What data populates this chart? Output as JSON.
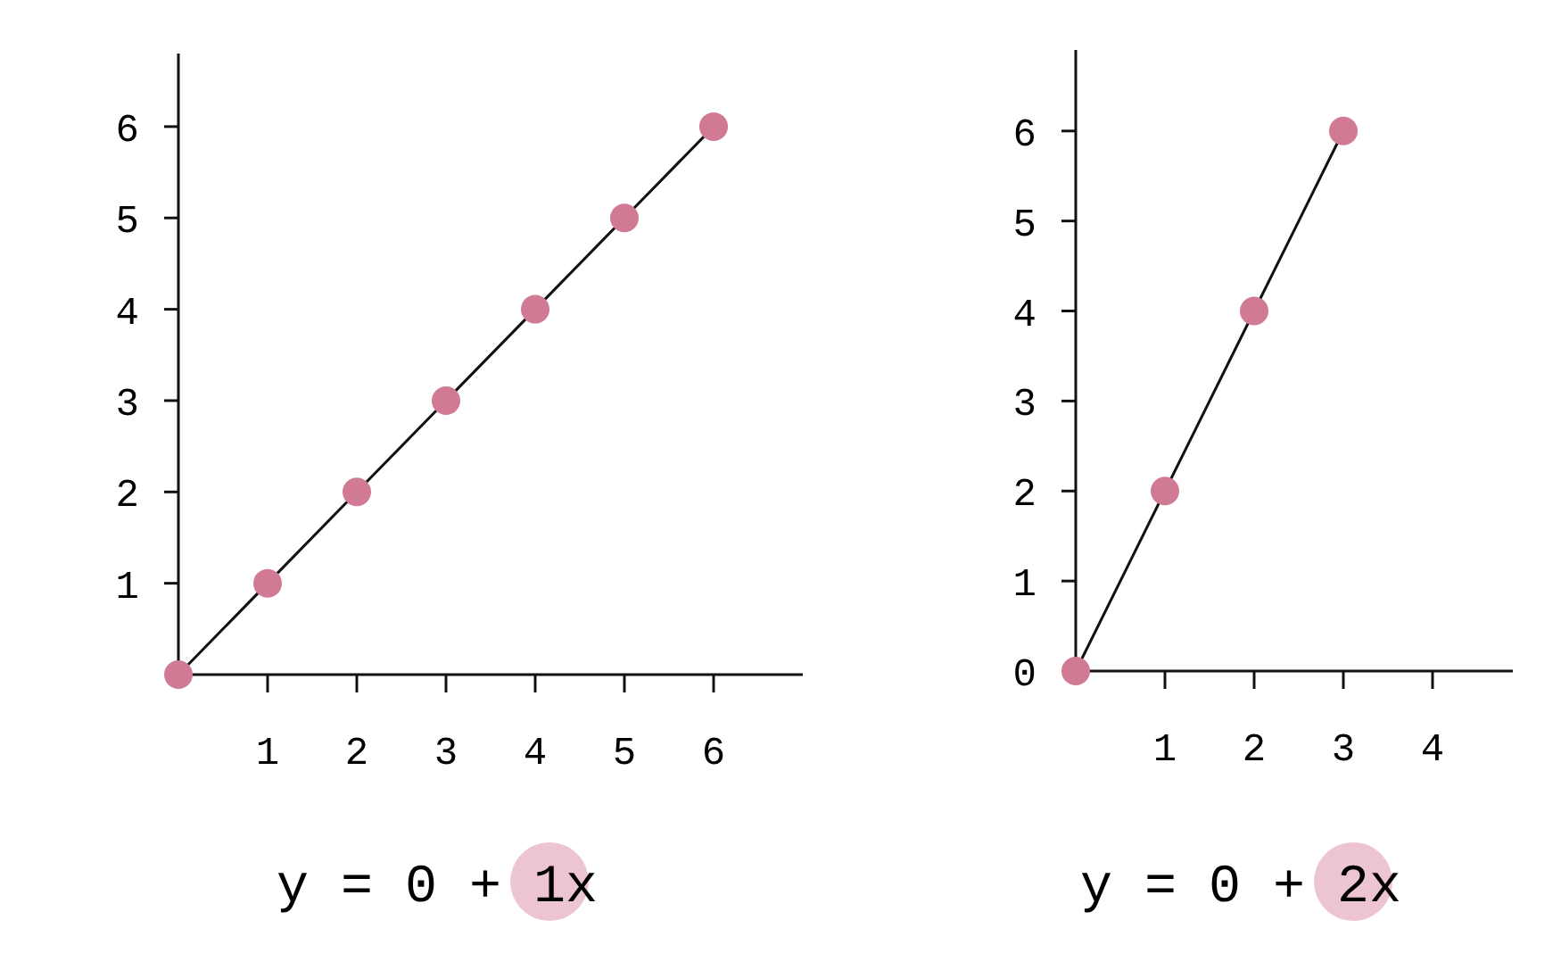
{
  "chart_data": [
    {
      "type": "line",
      "title": "y = 0 + 1x",
      "x": [
        0,
        1,
        2,
        3,
        4,
        5,
        6
      ],
      "series": [
        {
          "color": "#d07a93",
          "values": [
            0,
            1,
            2,
            3,
            4,
            5,
            6
          ]
        }
      ],
      "marker": "circle",
      "xlim": [
        0,
        7
      ],
      "ylim": [
        0,
        6.8
      ],
      "xticks": [
        1,
        2,
        3,
        4,
        5,
        6
      ],
      "yticks": [
        1,
        2,
        3,
        4,
        5,
        6
      ],
      "grid": false
    },
    {
      "type": "line",
      "title": "y = 0 + 2x",
      "x": [
        0,
        1,
        2,
        3
      ],
      "series": [
        {
          "color": "#d07a93",
          "values": [
            0,
            2,
            4,
            6
          ]
        }
      ],
      "marker": "circle",
      "xlim": [
        0,
        4.9
      ],
      "ylim": [
        0,
        6.9
      ],
      "xticks": [
        1,
        2,
        3,
        4
      ],
      "yticks": [
        0,
        1,
        2,
        3,
        4,
        5,
        6
      ],
      "grid": false
    }
  ]
}
